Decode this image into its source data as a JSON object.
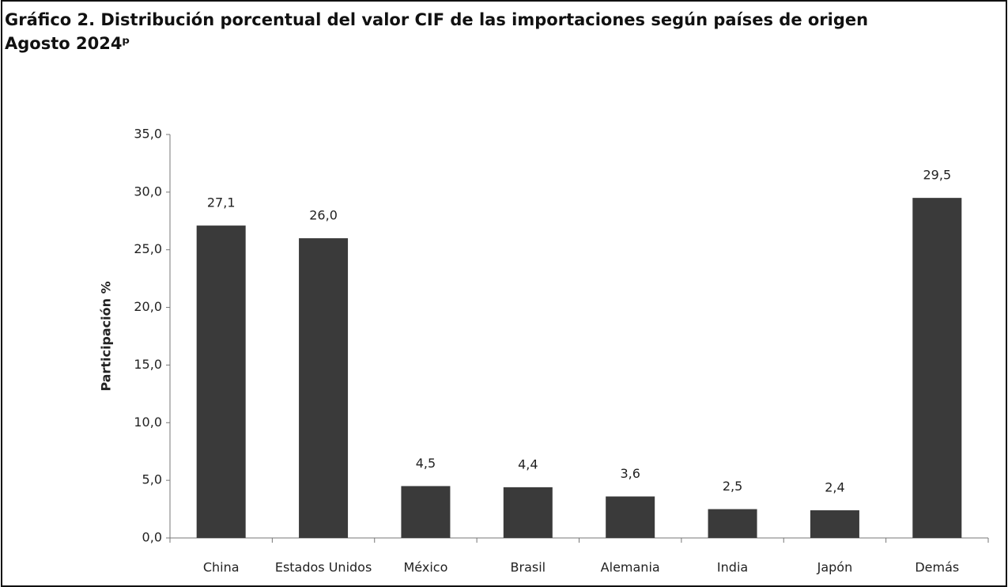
{
  "chart_data": {
    "type": "bar",
    "title": "Gráfico 2. Distribución porcentual del valor CIF de las importaciones según países de origen",
    "subtitle": "Agosto 2024ᵖ",
    "y_label": "Participación %",
    "categories": [
      "China",
      "Estados Unidos",
      "México",
      "Brasil",
      "Alemania",
      "India",
      "Japón",
      "Demás"
    ],
    "values": [
      27.1,
      26.0,
      4.5,
      4.4,
      3.6,
      2.5,
      2.4,
      29.5
    ],
    "value_labels": [
      "27,1",
      "26,0",
      "4,5",
      "4,4",
      "3,6",
      "2,5",
      "2,4",
      "29,5"
    ],
    "color": "#3a3a3a",
    "ylim": [
      0,
      35
    ],
    "yticks": [
      {
        "value": 0,
        "label": "0,0"
      },
      {
        "value": 5,
        "label": "5,0"
      },
      {
        "value": 10,
        "label": "10,0"
      },
      {
        "value": 15,
        "label": "15,0"
      },
      {
        "value": 20,
        "label": "20,0"
      },
      {
        "value": 25,
        "label": "25,0"
      },
      {
        "value": 30,
        "label": "30,0"
      },
      {
        "value": 35,
        "label": "35,0"
      }
    ],
    "grid": false
  }
}
